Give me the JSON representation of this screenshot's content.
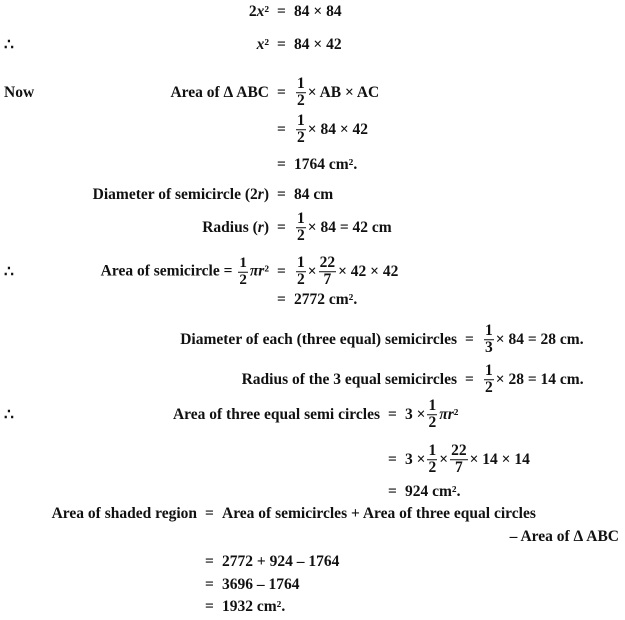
{
  "lines": [
    {
      "prefix": "",
      "lhs": [
        {
          "t": "2"
        },
        {
          "t": "x",
          "i": 1
        },
        {
          "t": "²"
        }
      ],
      "rhs": [
        {
          "t": "84 × 84"
        }
      ]
    },
    {
      "prefix": "∴",
      "lhs": [
        {
          "t": "x",
          "i": 1
        },
        {
          "t": "²"
        }
      ],
      "rhs": [
        {
          "t": "84 × 42"
        }
      ]
    },
    {
      "prefix": "Now",
      "lhs": [
        {
          "t": "Area of Δ ABC"
        }
      ],
      "rhs": [
        {
          "n": "1",
          "d": "2"
        },
        {
          "t": "× AB × AC"
        }
      ]
    },
    {
      "prefix": "",
      "lhs": [],
      "rhs": [
        {
          "n": "1",
          "d": "2"
        },
        {
          "t": "× 84 × 42"
        }
      ]
    },
    {
      "prefix": "",
      "lhs": [],
      "rhs": [
        {
          "t": "1764 cm²."
        }
      ]
    },
    {
      "prefix": "",
      "lhs": [
        {
          "t": "Diameter of semicircle (2"
        },
        {
          "t": "r",
          "i": 1
        },
        {
          "t": ")"
        }
      ],
      "rhs": [
        {
          "t": "84 cm"
        }
      ]
    },
    {
      "prefix": "",
      "lhs": [
        {
          "t": "Radius ("
        },
        {
          "t": "r",
          "i": 1
        },
        {
          "t": ")"
        }
      ],
      "rhs": [
        {
          "n": "1",
          "d": "2"
        },
        {
          "t": "× 84 = 42 cm"
        }
      ]
    },
    {
      "prefix": "∴",
      "lhs": [
        {
          "t": "Area of semicircle = "
        },
        {
          "n": "1",
          "d": "2"
        },
        {
          "t": "π",
          "i": 1
        },
        {
          "t": "r",
          "i": 1
        },
        {
          "t": "²"
        }
      ],
      "rhs": [
        {
          "n": "1",
          "d": "2"
        },
        {
          "t": "×"
        },
        {
          "n": "22",
          "d": "7"
        },
        {
          "t": "× 42 × 42"
        }
      ]
    },
    {
      "prefix": "",
      "lhs": [],
      "rhs": [
        {
          "t": "2772 cm²."
        }
      ]
    },
    {
      "prefix": "",
      "lhs": [
        {
          "t": "Diameter of each (three equal) semicircles"
        }
      ],
      "rhs": [
        {
          "n": "1",
          "d": "3"
        },
        {
          "t": "× 84 = 28 cm."
        }
      ]
    },
    {
      "prefix": "",
      "lhs": [
        {
          "t": "Radius of the 3 equal semicircles"
        }
      ],
      "rhs": [
        {
          "n": "1",
          "d": "2"
        },
        {
          "t": "× 28 = 14 cm."
        }
      ]
    },
    {
      "prefix": "∴",
      "lhs": [
        {
          "t": "Area of three equal semi circles"
        }
      ],
      "rhs": [
        {
          "t": "3 ×"
        },
        {
          "n": "1",
          "d": "2"
        },
        {
          "t": "π",
          "i": 1
        },
        {
          "t": "r",
          "i": 1
        },
        {
          "t": "²"
        }
      ]
    },
    {
      "prefix": "",
      "lhs": [],
      "rhs": [
        {
          "t": "3 ×"
        },
        {
          "n": "1",
          "d": "2"
        },
        {
          "t": "×"
        },
        {
          "n": "22",
          "d": "7"
        },
        {
          "t": "× 14 × 14"
        }
      ]
    },
    {
      "prefix": "",
      "lhs": [],
      "rhs": [
        {
          "t": "924 cm²."
        }
      ]
    },
    {
      "prefix": "",
      "lhs": [
        {
          "t": "Area of shaded region"
        }
      ],
      "rhs": [
        {
          "t": "Area of semicircles + Area of three equal circles"
        }
      ]
    },
    {
      "prefix": "",
      "right": "– Area of Δ ABC",
      "lhs": [],
      "rhs": []
    },
    {
      "prefix": "",
      "lhs": [],
      "rhs": [
        {
          "t": "2772 + 924 – 1764"
        }
      ]
    },
    {
      "prefix": "",
      "lhs": [],
      "rhs": [
        {
          "t": "3696 – 1764"
        }
      ]
    },
    {
      "prefix": "",
      "lhs": [],
      "rhs": [
        {
          "t": "1932 cm²."
        }
      ]
    }
  ],
  "equals_sign": "="
}
